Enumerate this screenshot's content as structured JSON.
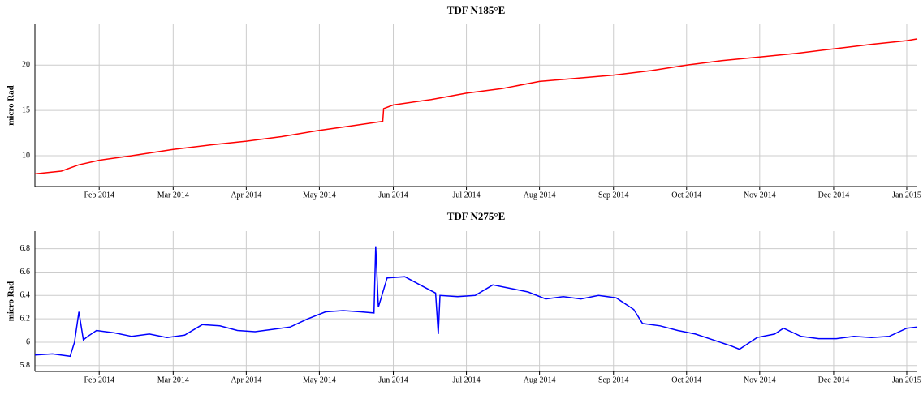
{
  "chart_data": [
    {
      "type": "line",
      "title": "TDF N185°E",
      "y_label": "micro Rad",
      "color": "#ff0000",
      "grid": true,
      "x": [
        2014.01,
        2014.04,
        2014.06,
        2014.083,
        2014.12,
        2014.167,
        2014.21,
        2014.25,
        2014.29,
        2014.333,
        2014.37,
        2014.405,
        2014.406,
        2014.417,
        2014.46,
        2014.5,
        2014.54,
        2014.583,
        2014.62,
        2014.667,
        2014.71,
        2014.75,
        2014.79,
        2014.833,
        2014.875,
        2014.917,
        2014.96,
        2015.0,
        2015.012
      ],
      "values": [
        8.0,
        8.3,
        9.0,
        9.5,
        10.0,
        10.7,
        11.2,
        11.6,
        12.1,
        12.8,
        13.3,
        13.8,
        15.2,
        15.6,
        16.2,
        16.9,
        17.4,
        18.2,
        18.5,
        18.9,
        19.4,
        20.0,
        20.5,
        20.9,
        21.3,
        21.8,
        22.3,
        22.7,
        22.9
      ],
      "xlim": [
        2014.01,
        2015.012
      ],
      "xticks": [
        {
          "value": 2014.083,
          "label": "Feb 2014"
        },
        {
          "value": 2014.167,
          "label": "Mar 2014"
        },
        {
          "value": 2014.25,
          "label": "Apr 2014"
        },
        {
          "value": 2014.333,
          "label": "May 2014"
        },
        {
          "value": 2014.417,
          "label": "Jun 2014"
        },
        {
          "value": 2014.5,
          "label": "Jul 2014"
        },
        {
          "value": 2014.583,
          "label": "Aug 2014"
        },
        {
          "value": 2014.667,
          "label": "Sep 2014"
        },
        {
          "value": 2014.75,
          "label": "Oct 2014"
        },
        {
          "value": 2014.833,
          "label": "Nov 2014"
        },
        {
          "value": 2014.917,
          "label": "Dec 2014"
        },
        {
          "value": 2015.0,
          "label": "Jan 2015"
        }
      ],
      "ylim": [
        6.6,
        24.5
      ],
      "yticks": [
        10,
        15,
        20
      ]
    },
    {
      "type": "line",
      "title": "TDF N275°E",
      "y_label": "micro Rad",
      "color": "#0000ff",
      "grid": true,
      "x": [
        2014.01,
        2014.03,
        2014.05,
        2014.055,
        2014.06,
        2014.065,
        2014.07,
        2014.08,
        2014.1,
        2014.12,
        2014.14,
        2014.16,
        2014.18,
        2014.2,
        2014.22,
        2014.24,
        2014.26,
        2014.28,
        2014.3,
        2014.32,
        2014.34,
        2014.36,
        2014.38,
        2014.395,
        2014.397,
        2014.4,
        2014.41,
        2014.43,
        2014.45,
        2014.465,
        2014.468,
        2014.47,
        2014.49,
        2014.51,
        2014.53,
        2014.55,
        2014.57,
        2014.59,
        2014.61,
        2014.63,
        2014.65,
        2014.67,
        2014.69,
        2014.7,
        2014.72,
        2014.74,
        2014.76,
        2014.78,
        2014.8,
        2014.81,
        2014.83,
        2014.85,
        2014.86,
        2014.88,
        2014.9,
        2014.92,
        2014.94,
        2014.96,
        2014.98,
        2015.0,
        2015.012
      ],
      "values": [
        5.89,
        5.9,
        5.88,
        6.0,
        6.26,
        6.02,
        6.05,
        6.1,
        6.08,
        6.05,
        6.07,
        6.04,
        6.06,
        6.15,
        6.14,
        6.1,
        6.09,
        6.11,
        6.13,
        6.2,
        6.26,
        6.27,
        6.26,
        6.25,
        6.82,
        6.3,
        6.55,
        6.56,
        6.48,
        6.42,
        6.07,
        6.4,
        6.39,
        6.4,
        6.49,
        6.46,
        6.43,
        6.37,
        6.39,
        6.37,
        6.4,
        6.38,
        6.28,
        6.16,
        6.14,
        6.1,
        6.07,
        6.02,
        5.97,
        5.94,
        6.04,
        6.07,
        6.12,
        6.05,
        6.03,
        6.03,
        6.05,
        6.04,
        6.05,
        6.12,
        6.13
      ],
      "xlim": [
        2014.01,
        2015.012
      ],
      "xticks": [
        {
          "value": 2014.083,
          "label": "Feb 2014"
        },
        {
          "value": 2014.167,
          "label": "Mar 2014"
        },
        {
          "value": 2014.25,
          "label": "Apr 2014"
        },
        {
          "value": 2014.333,
          "label": "May 2014"
        },
        {
          "value": 2014.417,
          "label": "Jun 2014"
        },
        {
          "value": 2014.5,
          "label": "Jul 2014"
        },
        {
          "value": 2014.583,
          "label": "Aug 2014"
        },
        {
          "value": 2014.667,
          "label": "Sep 2014"
        },
        {
          "value": 2014.75,
          "label": "Oct 2014"
        },
        {
          "value": 2014.833,
          "label": "Nov 2014"
        },
        {
          "value": 2014.917,
          "label": "Dec 2014"
        },
        {
          "value": 2015.0,
          "label": "Jan 2015"
        }
      ],
      "ylim": [
        5.75,
        6.95
      ],
      "yticks": [
        5.8,
        6,
        6.2,
        6.4,
        6.6,
        6.8
      ]
    }
  ]
}
